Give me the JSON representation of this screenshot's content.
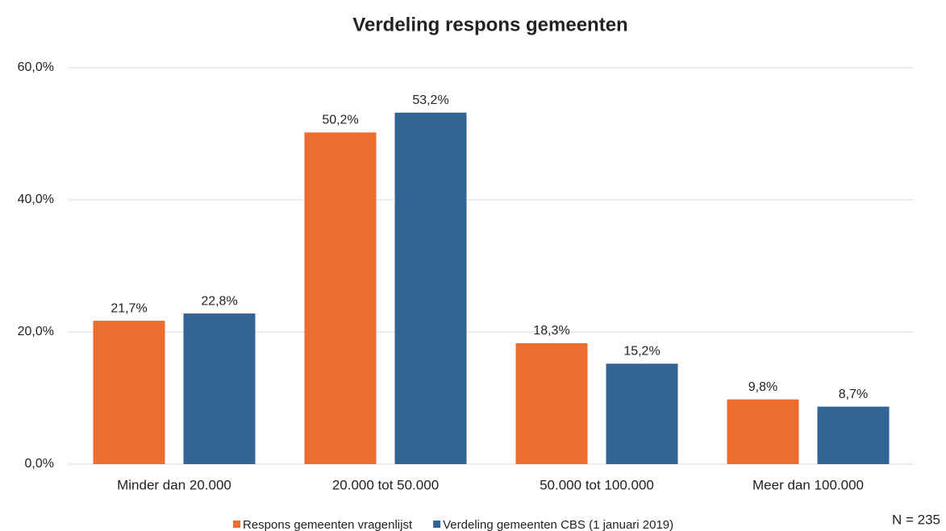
{
  "chart_data": {
    "type": "bar",
    "title": "Verdeling respons gemeenten",
    "categories": [
      "Minder dan 20.000",
      "20.000 tot 50.000",
      "50.000 tot 100.000",
      "Meer dan 100.000"
    ],
    "series": [
      {
        "name": "Respons gemeenten vragenlijst",
        "color": "#ed6d2f",
        "values": [
          21.7,
          50.2,
          18.3,
          9.8
        ],
        "value_labels": [
          "21,7%",
          "50,2%",
          "18,3%",
          "9,8%"
        ]
      },
      {
        "name": "Verdeling gemeenten CBS (1 januari 2019)",
        "color": "#336594",
        "values": [
          22.8,
          53.2,
          15.2,
          8.7
        ],
        "value_labels": [
          "22,8%",
          "53,2%",
          "15,2%",
          "8,7%"
        ]
      }
    ],
    "ylim": [
      0,
      60
    ],
    "yticks": [
      {
        "value": 0,
        "label": "0,0%"
      },
      {
        "value": 20,
        "label": "20,0%"
      },
      {
        "value": 40,
        "label": "40,0%"
      },
      {
        "value": 60,
        "label": "60,0%"
      }
    ],
    "grid": true,
    "legend": "bottom",
    "annotation": "N = 235"
  }
}
